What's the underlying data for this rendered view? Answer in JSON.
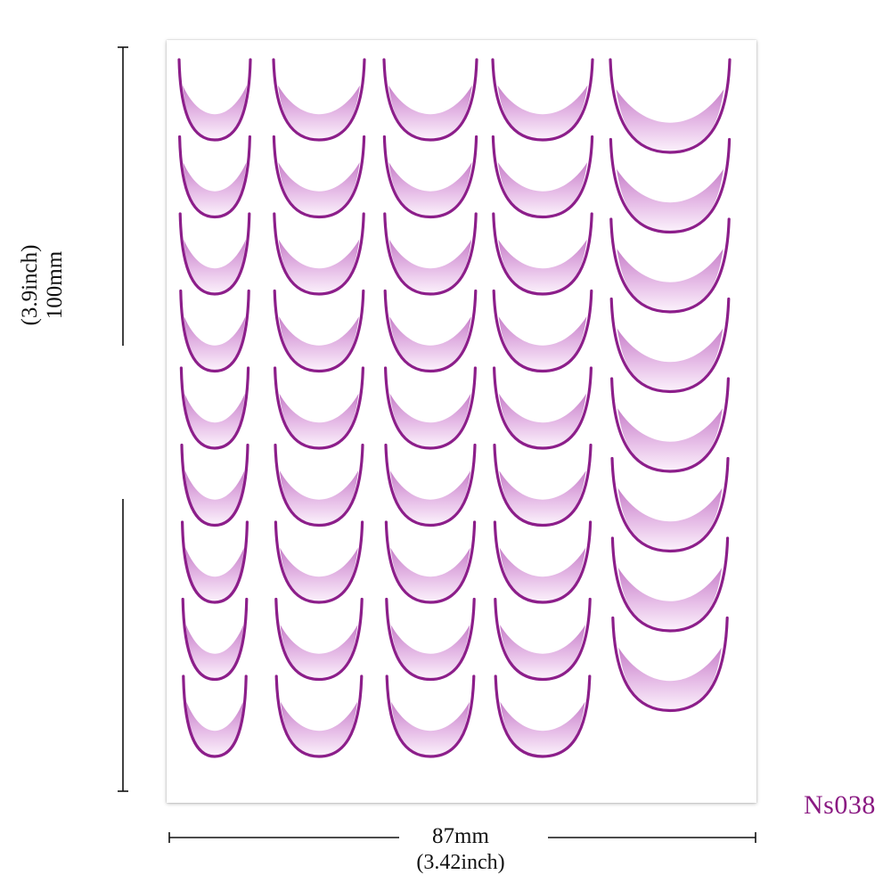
{
  "product": {
    "code": "Ns038",
    "width_label": "87mm",
    "width_inch_label": "(3.42inch)",
    "height_label": "100mm",
    "height_inch_label": "(3.9inch)"
  },
  "colors": {
    "stroke": "#8c1e8a",
    "fill_dark": "#c27ac4",
    "fill_light": "#fbf1fb",
    "text_accent": "#8a1a82"
  },
  "sticker_grid": {
    "columns": 5,
    "rows_per_column": [
      9,
      9,
      9,
      9,
      8
    ]
  }
}
